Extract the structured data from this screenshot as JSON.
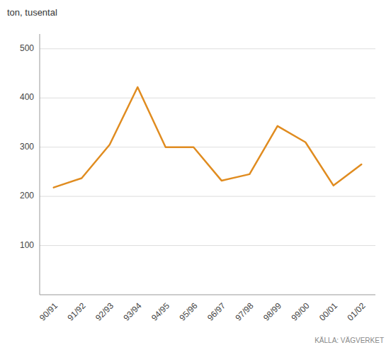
{
  "chart_data": {
    "type": "line",
    "ylabel": "ton, tusental",
    "annotations": [
      "KÄLLA: VÄGVERKET"
    ],
    "categories": [
      "90/91",
      "91/92",
      "92/93",
      "93/94",
      "94/95",
      "95/96",
      "96/97",
      "97/98",
      "98/99",
      "99/00",
      "00/01",
      "01/02"
    ],
    "values": [
      218,
      237,
      305,
      422,
      300,
      300,
      232,
      245,
      343,
      310,
      222,
      265
    ],
    "color": "#E08C20",
    "ylim": [
      0,
      530
    ],
    "yticks": [
      100,
      200,
      300,
      400,
      500
    ],
    "grid": true
  }
}
